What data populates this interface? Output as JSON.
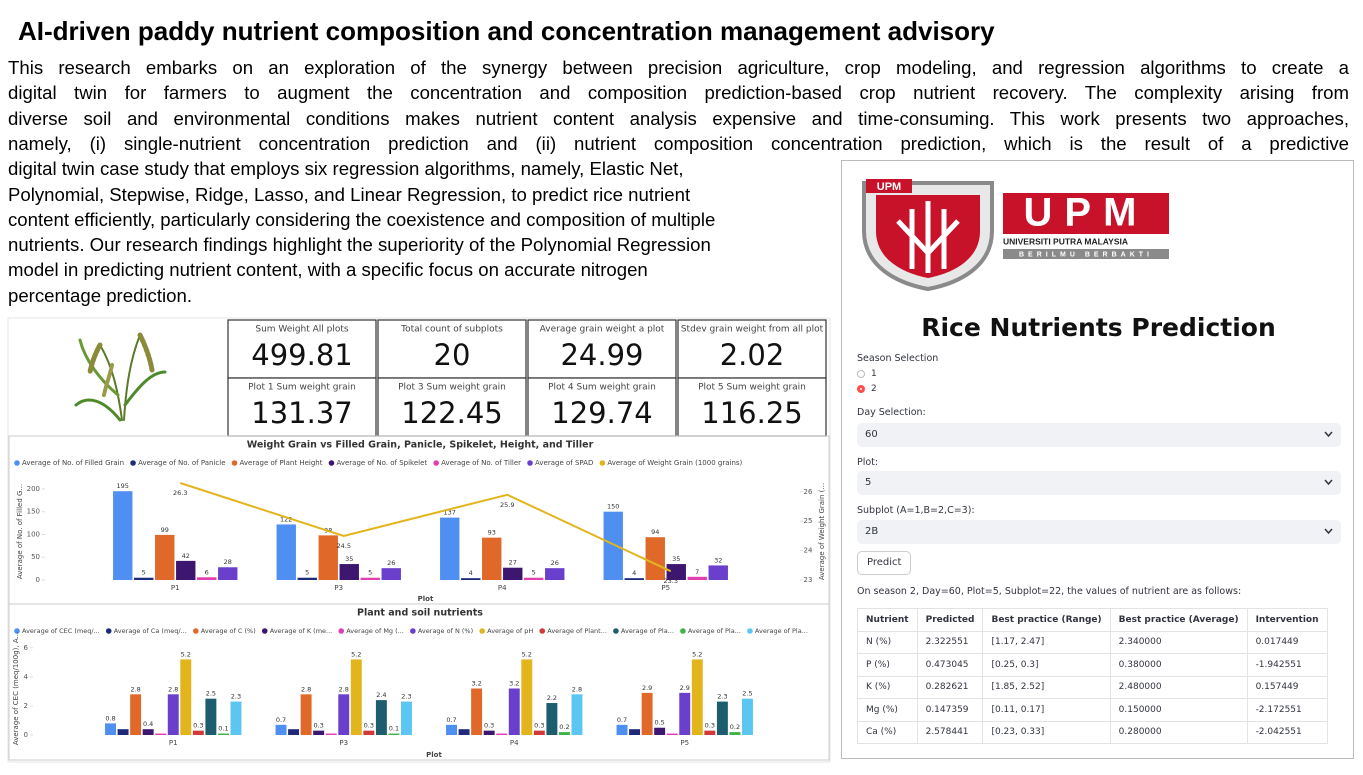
{
  "header": {
    "title": "AI-driven paddy nutrient composition and concentration management advisory"
  },
  "paragraph_lines": [
    "This research embarks on an exploration of the synergy between precision agriculture, crop modeling, and regression algorithms to create a",
    "digital twin for farmers to augment the concentration and composition prediction-based crop nutrient recovery. The complexity arising from",
    "diverse soil and environmental conditions makes nutrient content analysis expensive and time-consuming. This work presents two approaches,",
    "namely, (i) single-nutrient concentration prediction and (ii) nutrient composition concentration prediction, which is the result of a predictive",
    "digital twin case study that employs six regression algorithms, namely, Elastic Net,",
    "Polynomial, Stepwise, Ridge, Lasso, and Linear Regression, to predict rice nutrient",
    "content efficiently, particularly considering the coexistence and composition of multiple",
    "nutrients. Our research findings highlight the superiority of the Polynomial Regression",
    "model in predicting nutrient content, with a specific focus on accurate nitrogen",
    "percentage prediction."
  ],
  "dashboard": {
    "kpis": [
      {
        "label": "Sum Weight All plots",
        "value": 499.81
      },
      {
        "label": "Total count of subplots",
        "value": 20
      },
      {
        "label": "Average grain weight a plot",
        "value": 24.99
      },
      {
        "label": "Stdev grain weight from all plot",
        "value": 2.02
      },
      {
        "label": "Plot 1 Sum weight grain",
        "value": 131.37
      },
      {
        "label": "Plot 3 Sum weight grain",
        "value": 122.45
      },
      {
        "label": "Plot 4 Sum weight grain",
        "value": 129.74
      },
      {
        "label": "Plot 5 Sum weight grain",
        "value": 116.25
      }
    ]
  },
  "chart_data": [
    {
      "type": "bar",
      "title": "Weight Grain vs Filled Grain, Panicle, Spikelet, Height, and Tiller",
      "categories": [
        "P1",
        "P3",
        "P4",
        "P5"
      ],
      "x_label": "Plot",
      "y_label": "Average of No. of Filled G...",
      "y2_label": "Average of Weight Grain (...",
      "ylim": [
        0,
        213
      ],
      "yticks": [
        0,
        50,
        100,
        150,
        200
      ],
      "y2lim": [
        23,
        26.3
      ],
      "y2ticks": [
        23,
        24,
        25,
        26
      ],
      "series": [
        {
          "name": "Average of No. of Filled Grain",
          "color": "#4f8ff2",
          "values": [
            195,
            122,
            137,
            150
          ]
        },
        {
          "name": "Average of No. of Panicle",
          "color": "#1f2a7a",
          "values": [
            5,
            5,
            4,
            4
          ]
        },
        {
          "name": "Average of Plant Height",
          "color": "#e0692a",
          "values": [
            99,
            98,
            93,
            94
          ]
        },
        {
          "name": "Average of No. of Spikelet",
          "color": "#3d1670",
          "values": [
            42,
            35,
            27,
            35
          ]
        },
        {
          "name": "Average of No. of Tiller",
          "color": "#e23fb3",
          "values": [
            6,
            5,
            5,
            7
          ]
        },
        {
          "name": "Average of SPAD",
          "color": "#6a3fcc",
          "values": [
            28,
            26,
            26,
            32
          ]
        },
        {
          "name": "Average of Weight Grain (1000 grains)",
          "color": "#e2b51c",
          "type": "line",
          "axis": "y2",
          "values": [
            26.3,
            24.5,
            25.9,
            23.3
          ]
        }
      ]
    },
    {
      "type": "bar",
      "title": "Plant and soil nutrients",
      "categories": [
        "P1",
        "P3",
        "P4",
        "P5"
      ],
      "x_label": "Plot",
      "y_label": "Average of CEC (meq/100g), A...",
      "ylim": [
        0,
        6.4
      ],
      "yticks": [
        0,
        2,
        4,
        6
      ],
      "series": [
        {
          "name": "Average of CEC (meq/...",
          "color": "#4f8ff2",
          "values": [
            0.8,
            0.7,
            0.7,
            0.7
          ]
        },
        {
          "name": "Average of Ca (meq/...",
          "color": "#1f2a7a",
          "data_labels": false,
          "values": [
            0.4,
            0.4,
            0.4,
            0.4
          ]
        },
        {
          "name": "Average of C (%)",
          "color": "#e0692a",
          "values": [
            2.8,
            2.8,
            3.2,
            2.9
          ]
        },
        {
          "name": "Average of K (me...",
          "color": "#3d1670",
          "values": [
            0.4,
            0.3,
            0.3,
            0.5
          ]
        },
        {
          "name": "Average of Mg (...",
          "color": "#e23fb3",
          "data_labels": false,
          "values": [
            0.1,
            0.1,
            0.1,
            0.1
          ]
        },
        {
          "name": "Average of N (%)",
          "color": "#6a3fcc",
          "values": [
            2.8,
            2.8,
            3.2,
            2.9
          ]
        },
        {
          "name": "Average of pH",
          "color": "#e2b51c",
          "values": [
            5.2,
            5.2,
            5.2,
            5.2
          ]
        },
        {
          "name": "Average of Plant...",
          "color": "#d23a3a",
          "values": [
            0.3,
            0.3,
            0.3,
            0.3
          ]
        },
        {
          "name": "Average of Pla...",
          "color": "#1d5d6e",
          "values": [
            2.5,
            2.4,
            2.2,
            2.3
          ]
        },
        {
          "name": "Average of Pla...",
          "color": "#3fb34a",
          "values": [
            0.1,
            0.1,
            0.2,
            0.2
          ]
        },
        {
          "name": "Average of Pla...",
          "color": "#5cc6f2",
          "values": [
            2.3,
            2.3,
            2.8,
            2.5
          ]
        }
      ]
    }
  ],
  "app": {
    "logo": {
      "badge": "UPM",
      "wordmark": "UPM",
      "university": "UNIVERSITI PUTRA MALAYSIA",
      "motto": "BERILMU BERBAKTI"
    },
    "title": "Rice Nutrients Prediction",
    "season": {
      "label": "Season Selection",
      "options": [
        "1",
        "2"
      ],
      "selected": "2"
    },
    "day": {
      "label": "Day Selection:",
      "value": "60"
    },
    "plot": {
      "label": "Plot:",
      "value": "5"
    },
    "subplot": {
      "label": "Subplot (A=1,B=2,C=3):",
      "value": "2B"
    },
    "button": "Predict",
    "result_text": "On season 2, Day=60, Plot=5, Subplot=22, the values of nutrient are as follows:",
    "table": {
      "headers": [
        "Nutrient",
        "Predicted",
        "Best practice (Range)",
        "Best practice (Average)",
        "Intervention"
      ],
      "rows": [
        [
          "N (%)",
          "2.322551",
          "[1.17, 2.47]",
          "2.340000",
          "0.017449"
        ],
        [
          "P (%)",
          "0.473045",
          "[0.25, 0.3]",
          "0.380000",
          "-1.942551"
        ],
        [
          "K (%)",
          "0.282621",
          "[1.85, 2.52]",
          "2.480000",
          "0.157449"
        ],
        [
          "Mg (%)",
          "0.147359",
          "[0.11, 0.17]",
          "0.150000",
          "-2.172551"
        ],
        [
          "Ca (%)",
          "2.578441",
          "[0.23, 0.33]",
          "0.280000",
          "-2.042551"
        ]
      ]
    }
  }
}
